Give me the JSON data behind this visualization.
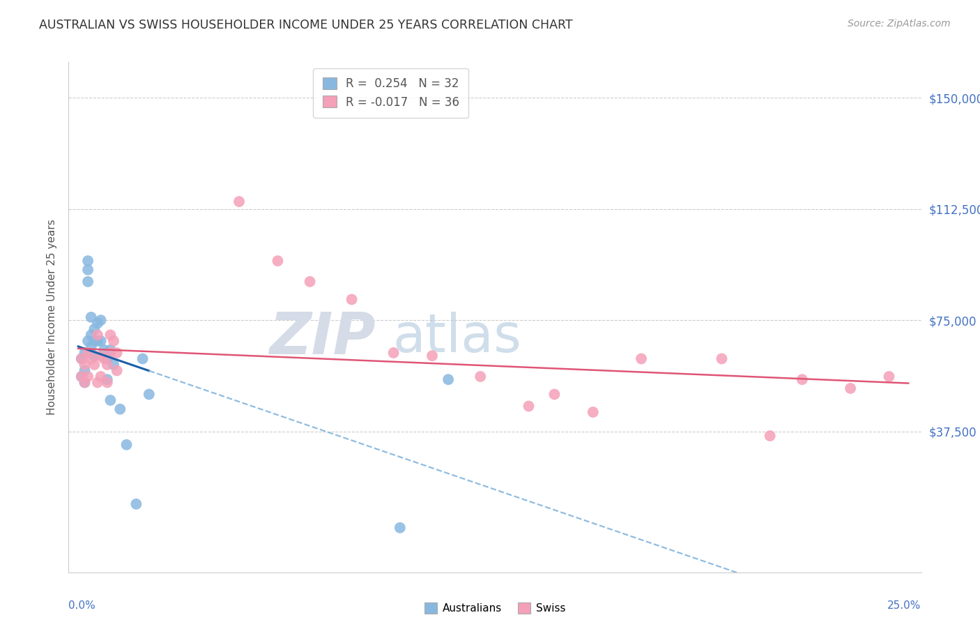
{
  "title": "AUSTRALIAN VS SWISS HOUSEHOLDER INCOME UNDER 25 YEARS CORRELATION CHART",
  "source": "Source: ZipAtlas.com",
  "ylabel": "Householder Income Under 25 years",
  "yticks": [
    0,
    37500,
    75000,
    112500,
    150000
  ],
  "ytick_labels": [
    "",
    "$37,500",
    "$75,000",
    "$112,500",
    "$150,000"
  ],
  "ylim": [
    -10000,
    162000
  ],
  "xlim": [
    -0.003,
    0.262
  ],
  "legend_line1": "R =  0.254   N = 32",
  "legend_line2": "R = -0.017   N = 36",
  "bg_color": "#ffffff",
  "grid_color": "#cccccc",
  "blue_scatter": "#88b8e0",
  "pink_scatter": "#f4a0b8",
  "blue_line": "#1a5fa8",
  "pink_line": "#e05575",
  "blue_dash": "#90bce0",
  "watermark_zip_color": "#d5dce8",
  "watermark_atlas_color": "#b0c8dc",
  "aus_x": [
    0.001,
    0.001,
    0.002,
    0.002,
    0.002,
    0.003,
    0.003,
    0.003,
    0.003,
    0.004,
    0.004,
    0.004,
    0.005,
    0.005,
    0.005,
    0.006,
    0.006,
    0.007,
    0.007,
    0.008,
    0.009,
    0.009,
    0.01,
    0.01,
    0.011,
    0.013,
    0.015,
    0.018,
    0.02,
    0.022,
    0.1,
    0.115
  ],
  "aus_y": [
    62000,
    56000,
    64000,
    58000,
    54000,
    95000,
    92000,
    88000,
    68000,
    76000,
    70000,
    66000,
    72000,
    68000,
    63000,
    74000,
    68000,
    75000,
    68000,
    65000,
    55000,
    62000,
    48000,
    65000,
    60000,
    45000,
    33000,
    13000,
    62000,
    50000,
    5000,
    55000
  ],
  "swiss_x": [
    0.001,
    0.001,
    0.002,
    0.002,
    0.003,
    0.003,
    0.004,
    0.005,
    0.006,
    0.006,
    0.007,
    0.007,
    0.008,
    0.009,
    0.009,
    0.01,
    0.01,
    0.011,
    0.012,
    0.012,
    0.05,
    0.062,
    0.072,
    0.085,
    0.098,
    0.11,
    0.125,
    0.14,
    0.148,
    0.16,
    0.175,
    0.2,
    0.215,
    0.225,
    0.24,
    0.252
  ],
  "swiss_y": [
    62000,
    56000,
    54000,
    60000,
    64000,
    56000,
    62000,
    60000,
    54000,
    70000,
    63000,
    56000,
    62000,
    60000,
    54000,
    70000,
    64000,
    68000,
    64000,
    58000,
    115000,
    95000,
    88000,
    82000,
    64000,
    63000,
    56000,
    46000,
    50000,
    44000,
    62000,
    62000,
    36000,
    55000,
    52000,
    56000
  ]
}
